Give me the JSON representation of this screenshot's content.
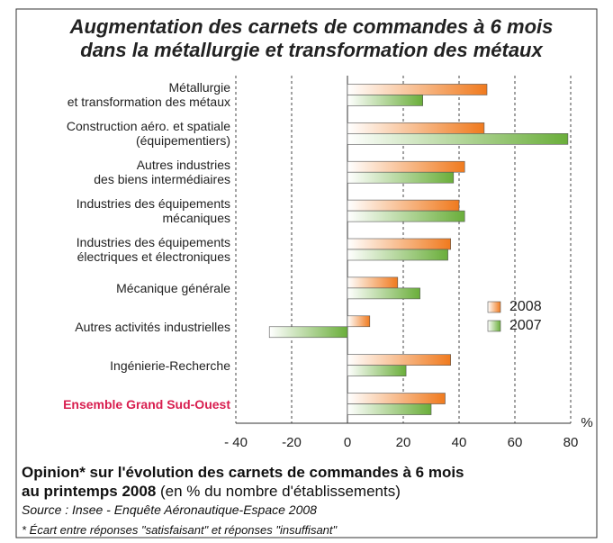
{
  "chart_data": {
    "type": "hbar",
    "title": [
      "Augmentation des carnets de commandes à 6 mois",
      "dans la métallurgie et transformation des métaux"
    ],
    "categories": [
      "Métallurgie\net transformation des métaux",
      "Construction aéro. et spatiale\n(équipementiers)",
      "Autres industries\ndes biens intermédiaires",
      "Industries des équipements\nmécaniques",
      "Industries des équipements\nélectriques et électroniques",
      "Mécanique générale",
      "Autres activités industrielles",
      "Ingénierie-Recherche",
      "Ensemble Grand Sud-Ouest"
    ],
    "highlight": {
      "index": 8,
      "color": "#d81e4f"
    },
    "series": [
      {
        "name": "2008",
        "color": "#f07a1e",
        "values": [
          50,
          49,
          42,
          40,
          37,
          18,
          8,
          37,
          35
        ]
      },
      {
        "name": "2007",
        "color": "#6aae3a",
        "values": [
          27,
          79,
          38,
          42,
          36,
          26,
          -28,
          21,
          30
        ]
      }
    ],
    "xlim": [
      -40,
      80
    ],
    "xticks": [
      {
        "value": -40,
        "label": "- 40"
      },
      -20,
      0,
      20,
      40,
      60,
      80
    ],
    "x_unit": "%",
    "grid": true,
    "legend": "right",
    "footer": {
      "line1": "Opinion* sur l'évolution des carnets de commandes à 6 mois",
      "line2_bold": "au printemps 2008",
      "line2_rest": " (en % du nombre d'établissements)",
      "source": "Source : Insee - Enquête Aéronautique-Espace 2008",
      "note": "* Écart entre réponses \"satisfaisant\" et réponses \"insuffisant\""
    }
  }
}
